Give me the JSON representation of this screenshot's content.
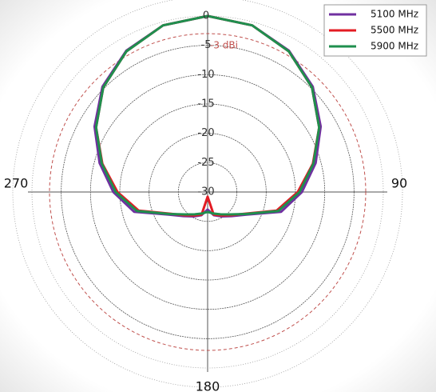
{
  "chart_data": {
    "type": "polar-line",
    "x": [
      0,
      15,
      30,
      45,
      60,
      75,
      90,
      105,
      120,
      135,
      150,
      165,
      180,
      195,
      210,
      225,
      240,
      255,
      270,
      285,
      300,
      315,
      330,
      345
    ],
    "series": [
      {
        "name": "5100 MHz",
        "color": "#7030a0",
        "values": [
          0,
          -0.6,
          -2.2,
          -4.6,
          -7.7,
          -10.9,
          -13.9,
          -17.0,
          -22.3,
          -24.2,
          -25.2,
          -25.9,
          -27.0,
          -25.9,
          -25.2,
          -24.2,
          -22.3,
          -17.0,
          -13.9,
          -10.9,
          -7.7,
          -4.6,
          -2.2,
          -0.6
        ]
      },
      {
        "name": "5500 MHz",
        "color": "#e31b23",
        "values": [
          0,
          -0.6,
          -2.3,
          -4.8,
          -8.0,
          -11.4,
          -14.6,
          -17.8,
          -22.6,
          -24.4,
          -25.4,
          -26.0,
          -29.2,
          -26.0,
          -25.4,
          -24.4,
          -22.6,
          -17.8,
          -14.6,
          -11.4,
          -8.0,
          -4.8,
          -2.3,
          -0.6
        ]
      },
      {
        "name": "5900 MHz",
        "color": "#1f8f4e",
        "values": [
          0,
          -0.6,
          -2.3,
          -4.8,
          -8.0,
          -11.3,
          -14.3,
          -17.5,
          -22.5,
          -24.6,
          -25.6,
          -26.2,
          -26.6,
          -26.2,
          -25.6,
          -24.6,
          -22.5,
          -17.5,
          -14.3,
          -11.3,
          -8.0,
          -4.8,
          -2.3,
          -0.6
        ]
      }
    ],
    "ylim": [
      -30,
      0
    ],
    "yticks": [
      0,
      -5,
      -10,
      -15,
      -20,
      -25,
      -30
    ],
    "xticks": [
      90,
      180,
      270
    ],
    "reference": {
      "value": -3,
      "label": "-3 dBi",
      "color": "#c0504d"
    },
    "legend": "top-right"
  }
}
